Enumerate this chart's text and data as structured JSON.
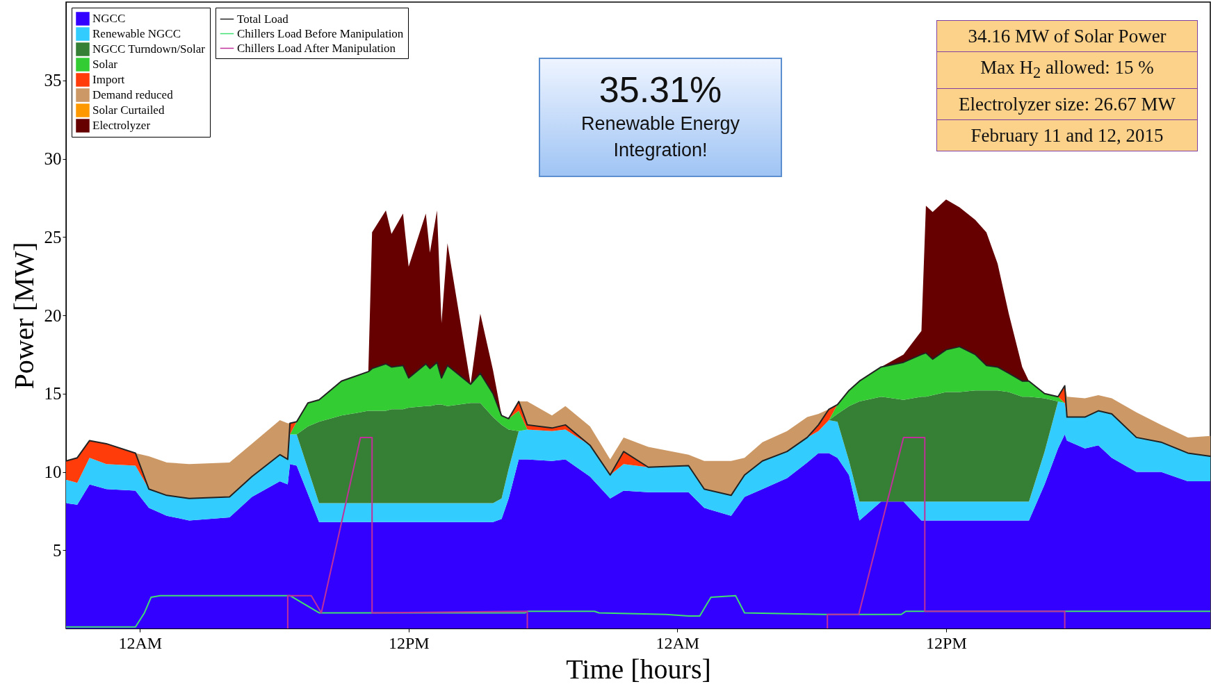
{
  "chart_data": {
    "type": "area",
    "stacked": true,
    "title": null,
    "xlabel": "Time [hours]",
    "ylabel": "Power [MW]",
    "xlim": [
      "2015-02-10T20:42",
      "2015-02-12T23:48"
    ],
    "ylim": [
      0,
      40
    ],
    "xticks": [
      {
        "value": "2015-02-11T00:00",
        "label": "12AM"
      },
      {
        "value": "2015-02-11T12:00",
        "label": "12PM"
      },
      {
        "value": "2015-02-12T00:00",
        "label": "12AM"
      },
      {
        "value": "2015-02-12T12:00",
        "label": "12PM"
      }
    ],
    "yticks": [
      5,
      10,
      15,
      20,
      25,
      30,
      35
    ],
    "grid": false,
    "legend": "top left",
    "annotations": [
      "35.31%",
      "Renewable Energy Integration!",
      "34.16 MW of Solar Power",
      "Max H$_{2}$ allowed: 15 %",
      "Electrolyzer size: 26.67 MW",
      "February 11 and 12, 2015"
    ],
    "x": [
      "2015-02-10T20:42",
      "2015-02-10T21:12",
      "2015-02-10T21:45",
      "2015-02-10T22:30",
      "2015-02-10T23:48",
      "2015-02-11T00:24",
      "2015-02-11T01:12",
      "2015-02-11T02:12",
      "2015-02-11T04:00",
      "2015-02-11T05:00",
      "2015-02-11T06:15",
      "2015-02-11T06:36",
      "2015-02-11T06:42",
      "2015-02-11T07:00",
      "2015-02-11T07:30",
      "2015-02-11T08:00",
      "2015-02-11T09:00",
      "2015-02-11T10:12",
      "2015-02-11T10:22",
      "2015-02-11T10:59",
      "2015-02-11T11:14",
      "2015-02-11T11:45",
      "2015-02-11T12:00",
      "2015-02-11T12:46",
      "2015-02-11T12:57",
      "2015-02-11T13:16",
      "2015-02-11T13:28",
      "2015-02-11T13:44",
      "2015-02-11T14:46",
      "2015-02-11T15:12",
      "2015-02-11T15:46",
      "2015-02-11T16:09",
      "2015-02-11T16:28",
      "2015-02-11T16:55",
      "2015-02-11T17:18",
      "2015-02-11T18:24",
      "2015-02-11T19:00",
      "2015-02-11T20:06",
      "2015-02-11T21:00",
      "2015-02-11T21:36",
      "2015-02-11T22:42",
      "2015-02-12T00:30",
      "2015-02-12T01:12",
      "2015-02-12T02:24",
      "2015-02-12T03:00",
      "2015-02-12T03:48",
      "2015-02-12T04:54",
      "2015-02-12T05:48",
      "2015-02-12T06:18",
      "2015-02-12T06:46",
      "2015-02-12T07:09",
      "2015-02-12T07:40",
      "2015-02-12T08:08",
      "2015-02-12T09:06",
      "2015-02-12T10:06",
      "2015-02-12T10:54",
      "2015-02-12T11:06",
      "2015-02-12T11:24",
      "2015-02-12T12:00",
      "2015-02-12T12:36",
      "2015-02-12T13:18",
      "2015-02-12T13:48",
      "2015-02-12T14:18",
      "2015-02-12T14:48",
      "2015-02-12T15:24",
      "2015-02-12T15:42",
      "2015-02-12T16:24",
      "2015-02-12T17:00",
      "2015-02-12T17:18",
      "2015-02-12T17:24",
      "2015-02-12T18:12",
      "2015-02-12T18:48",
      "2015-02-12T19:24",
      "2015-02-12T20:30",
      "2015-02-12T21:36",
      "2015-02-12T22:48",
      "2015-02-12T23:48"
    ],
    "series": [
      {
        "name": "NGCC",
        "color": "#3300ff",
        "values": [
          8.0,
          7.9,
          9.2,
          8.9,
          8.8,
          7.7,
          7.2,
          6.9,
          7.1,
          8.4,
          9.4,
          9.2,
          10.5,
          10.4,
          8.6,
          6.8,
          6.8,
          6.8,
          6.8,
          6.8,
          6.8,
          6.8,
          6.8,
          6.8,
          6.8,
          6.8,
          6.8,
          6.8,
          6.8,
          6.8,
          6.8,
          7.0,
          8.3,
          10.8,
          10.8,
          10.7,
          10.8,
          9.7,
          8.3,
          8.8,
          8.7,
          8.7,
          7.7,
          7.2,
          8.4,
          8.9,
          9.6,
          10.6,
          11.2,
          11.2,
          10.9,
          9.8,
          6.9,
          8.1,
          8.1,
          6.9,
          6.9,
          6.9,
          6.9,
          6.9,
          6.9,
          6.9,
          6.9,
          6.9,
          6.9,
          6.9,
          9.2,
          11.5,
          12.4,
          12.0,
          11.5,
          11.7,
          10.9,
          10.0,
          10.0,
          9.4,
          9.4
        ]
      },
      {
        "name": "Renewable NGCC",
        "color": "#33ccff",
        "values": [
          1.5,
          1.4,
          1.7,
          1.6,
          1.6,
          1.2,
          1.3,
          1.4,
          1.3,
          1.3,
          1.7,
          1.6,
          1.9,
          2.0,
          1.6,
          1.2,
          1.2,
          1.2,
          1.2,
          1.2,
          1.2,
          1.2,
          1.2,
          1.2,
          1.2,
          1.2,
          1.2,
          1.2,
          1.2,
          1.2,
          1.2,
          1.3,
          1.9,
          1.8,
          1.9,
          1.9,
          1.9,
          2.0,
          1.5,
          1.7,
          1.6,
          1.7,
          1.2,
          1.3,
          1.4,
          1.8,
          1.7,
          1.6,
          1.4,
          2.1,
          2.3,
          0.9,
          1.2,
          0,
          0,
          1.2,
          1.2,
          1.2,
          1.2,
          1.2,
          1.2,
          1.2,
          1.2,
          1.2,
          1.2,
          1.2,
          2.1,
          3.0,
          2.0,
          1.5,
          2.0,
          2.2,
          2.8,
          2.2,
          1.9,
          1.8,
          1.6
        ]
      },
      {
        "name": "NGCC Turndown/Solar",
        "color": "#358035",
        "values": [
          null,
          null,
          null,
          null,
          null,
          null,
          null,
          null,
          null,
          null,
          null,
          null,
          null,
          0,
          2.7,
          5.2,
          5.6,
          5.9,
          5.9,
          5.9,
          6.0,
          6.0,
          6.1,
          6.2,
          6.2,
          6.3,
          6.3,
          6.2,
          6.4,
          6.4,
          5.5,
          4.7,
          2.5,
          0,
          null,
          null,
          null,
          null,
          null,
          null,
          null,
          null,
          null,
          null,
          null,
          null,
          null,
          null,
          null,
          0,
          0.5,
          3.5,
          6.4,
          6.7,
          6.5,
          6.7,
          6.7,
          6.8,
          7.0,
          7.0,
          7.1,
          7.1,
          7.1,
          7.0,
          6.7,
          6.7,
          3.4,
          0,
          null,
          null,
          null,
          null,
          null,
          null,
          null,
          null,
          null
        ]
      },
      {
        "name": "Solar",
        "color": "#33cc33",
        "values": [
          null,
          null,
          null,
          null,
          null,
          null,
          null,
          null,
          null,
          null,
          null,
          null,
          0,
          0.8,
          1.5,
          1.4,
          2.2,
          2.5,
          2.7,
          3.0,
          2.7,
          2.8,
          1.9,
          2.7,
          2.4,
          2.7,
          1.7,
          2.6,
          1.2,
          1.9,
          1.5,
          0.6,
          0.7,
          1.3,
          0,
          null,
          null,
          null,
          null,
          null,
          null,
          null,
          null,
          null,
          null,
          null,
          null,
          null,
          null,
          0,
          0.6,
          1.0,
          1.3,
          1.9,
          2.4,
          2.7,
          2.8,
          2.3,
          2.7,
          2.9,
          2.3,
          1.6,
          1.5,
          1.2,
          1.0,
          1.0,
          0.3,
          0.3,
          0,
          null,
          null,
          null,
          null,
          null,
          null,
          null,
          null
        ]
      },
      {
        "name": "Import",
        "color": "#ff3c0a",
        "values": [
          1.2,
          1.6,
          1.1,
          1.3,
          0.8,
          0,
          null,
          null,
          null,
          null,
          null,
          0,
          0.7,
          0,
          null,
          null,
          null,
          null,
          null,
          null,
          null,
          null,
          null,
          null,
          null,
          null,
          null,
          null,
          null,
          null,
          null,
          null,
          0,
          0.6,
          0.3,
          0.2,
          0.3,
          0,
          0,
          0.8,
          0,
          null,
          null,
          null,
          null,
          null,
          null,
          0,
          0.4,
          0.7,
          0,
          null,
          null,
          null,
          null,
          null,
          null,
          null,
          null,
          null,
          null,
          null,
          null,
          null,
          null,
          null,
          null,
          0,
          1.1,
          0,
          null,
          null,
          null,
          null,
          null,
          null,
          null
        ]
      },
      {
        "name": "Demand reduced",
        "color": "#cc9966",
        "values": [
          null,
          null,
          null,
          null,
          0,
          2.1,
          2.1,
          2.2,
          2.2,
          2.1,
          2.2,
          2.3,
          0,
          null,
          null,
          null,
          null,
          null,
          null,
          null,
          null,
          null,
          null,
          null,
          null,
          null,
          null,
          null,
          null,
          null,
          null,
          null,
          null,
          0,
          1.5,
          0.8,
          1.2,
          1.2,
          1.0,
          0.9,
          1.3,
          0.7,
          1.8,
          2.2,
          1.1,
          1.2,
          1.3,
          1.3,
          0.7,
          0,
          null,
          null,
          null,
          null,
          null,
          null,
          null,
          null,
          null,
          null,
          null,
          null,
          null,
          null,
          null,
          null,
          null,
          null,
          0,
          1.3,
          1.2,
          1.0,
          1.0,
          1.6,
          1.1,
          1.0,
          1.3
        ]
      },
      {
        "name": "Solar Curtailed",
        "color": "#ff9900",
        "values": [
          null,
          null,
          null,
          null,
          null,
          null,
          null,
          null,
          null,
          null,
          null,
          null,
          null,
          null,
          null,
          null,
          null,
          null,
          null,
          null,
          null,
          null,
          null,
          null,
          null,
          null,
          null,
          null,
          null,
          null,
          null,
          null,
          null,
          null,
          null,
          null,
          null,
          null,
          null,
          null,
          null,
          null,
          null,
          null,
          null,
          null,
          null,
          null,
          null,
          null,
          null,
          null,
          null,
          null,
          null,
          null,
          null,
          null,
          null,
          null,
          null,
          null,
          null,
          null,
          null,
          null,
          null,
          null,
          null,
          null,
          null,
          null,
          null,
          null,
          null,
          null,
          null
        ]
      },
      {
        "name": "Electrolyzer",
        "color": "#660000",
        "values": [
          null,
          null,
          null,
          null,
          null,
          null,
          null,
          null,
          null,
          null,
          null,
          null,
          null,
          null,
          null,
          null,
          null,
          0,
          8.7,
          9.8,
          8.5,
          9.7,
          7.1,
          9.6,
          7.4,
          9.7,
          3.5,
          7.8,
          0,
          3.8,
          1.5,
          0,
          null,
          null,
          null,
          null,
          null,
          null,
          null,
          null,
          null,
          null,
          null,
          null,
          null,
          null,
          null,
          null,
          null,
          null,
          null,
          null,
          null,
          0,
          0.5,
          1.5,
          9.4,
          9.4,
          9.6,
          8.9,
          8.6,
          8.5,
          6.6,
          3.8,
          0.9,
          0,
          null,
          null,
          null,
          null,
          null,
          null,
          null,
          null,
          null,
          null,
          null
        ]
      },
      {
        "name": "Total Load",
        "type": "line",
        "color": "#222222",
        "values": [
          10.7,
          10.9,
          12.0,
          11.8,
          11.2,
          8.9,
          8.5,
          8.3,
          8.4,
          9.7,
          11.1,
          10.8,
          13.1,
          13.2,
          14.4,
          14.6,
          15.8,
          16.4,
          16.6,
          16.9,
          16.7,
          16.8,
          16.0,
          16.9,
          16.6,
          17.0,
          16.0,
          16.8,
          15.6,
          16.3,
          15.0,
          13.6,
          13.4,
          14.5,
          13.0,
          12.8,
          13.0,
          11.7,
          9.8,
          11.3,
          10.3,
          10.4,
          8.9,
          8.5,
          9.8,
          10.7,
          11.3,
          12.2,
          13.0,
          14.0,
          14.3,
          15.2,
          15.8,
          16.7,
          17.0,
          17.5,
          17.6,
          17.2,
          17.8,
          18.0,
          17.5,
          16.8,
          16.7,
          16.3,
          15.8,
          15.8,
          15.0,
          14.8,
          15.5,
          13.5,
          13.5,
          13.9,
          13.7,
          12.2,
          11.9,
          11.2,
          11.0
        ]
      },
      {
        "name": "Chillers Load Before Manipulation",
        "type": "line",
        "color": "#40e070",
        "x": [
          "2015-02-10T20:42",
          "2015-02-10T23:48",
          "2015-02-11T00:12",
          "2015-02-11T00:30",
          "2015-02-11T00:54",
          "2015-02-11T06:42",
          "2015-02-11T08:00",
          "2015-02-11T17:12",
          "2015-02-11T17:18",
          "2015-02-11T20:18",
          "2015-02-11T20:30",
          "2015-02-11T23:30",
          "2015-02-12T00:30",
          "2015-02-12T01:00",
          "2015-02-12T01:30",
          "2015-02-12T02:36",
          "2015-02-12T03:00",
          "2015-02-12T06:36",
          "2015-02-12T10:00",
          "2015-02-12T10:12",
          "2015-02-12T23:48"
        ],
        "values": [
          0.1,
          0.1,
          1.0,
          2.0,
          2.1,
          2.1,
          1.0,
          1.0,
          1.1,
          1.1,
          1.0,
          0.9,
          0.8,
          0.8,
          2.0,
          2.1,
          1.0,
          0.9,
          0.9,
          1.1,
          1.1
        ]
      },
      {
        "name": "Chillers Load After Manipulation",
        "type": "line",
        "color": "#c0309a",
        "x": [
          "2015-02-11T06:36",
          "2015-02-11T06:36",
          "2015-02-11T07:39",
          "2015-02-11T08:06",
          "2015-02-11T09:51",
          "2015-02-11T10:22",
          "2015-02-11T10:22",
          "2015-02-11T17:18",
          "2015-02-11T17:18",
          "2015-02-12T00:00",
          "2015-02-12T06:42",
          "2015-02-12T06:42",
          "2015-02-12T08:06",
          "2015-02-12T10:06",
          "2015-02-12T11:03",
          "2015-02-12T11:03",
          "2015-02-12T17:18",
          "2015-02-12T17:18"
        ],
        "values": [
          0,
          2.1,
          2.1,
          1.0,
          12.2,
          12.2,
          1.0,
          1.1,
          0,
          null,
          0,
          0.9,
          0.9,
          12.2,
          12.2,
          1.1,
          1.1,
          0
        ]
      }
    ]
  }
}
